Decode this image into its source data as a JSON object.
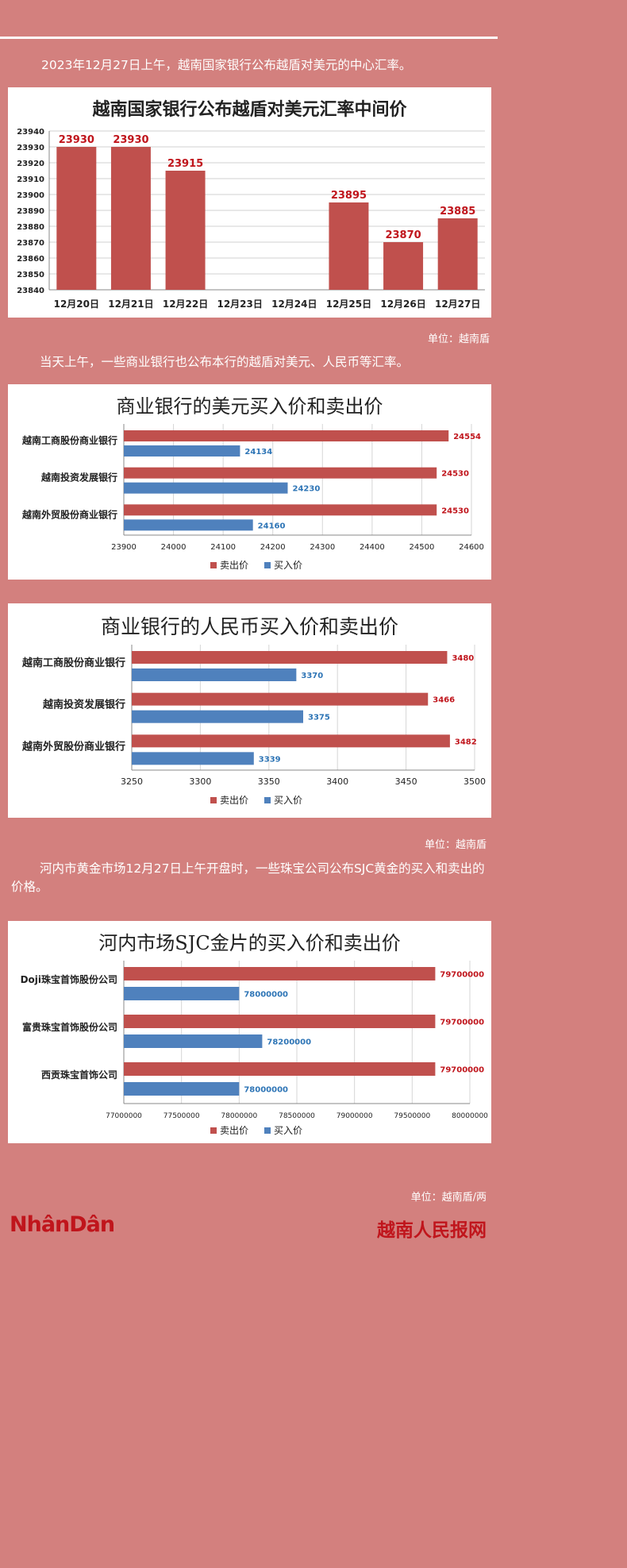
{
  "intro1": "2023年12月27日上午，越南国家银行公布越盾对美元的中心汇率。",
  "unit1": "单位：越南盾",
  "intro2": "当天上午，一些商业银行也公布本行的越盾对美元、人民币等汇率。",
  "unit2": "单位：越南盾",
  "intro3": "河内市黄金市场12月27日上午开盘时，一些珠宝公司公布SJC黄金的买入和卖出的价格。",
  "unit3": "单位：越南盾/两",
  "footer": {
    "logo_left": "NhânDân",
    "logo_right": "越南人民报网"
  },
  "colors": {
    "sell": "#c0504d",
    "buy": "#4f81bd",
    "bg": "#d3807e"
  },
  "chart_data": [
    {
      "type": "bar",
      "title": "越南国家银行公布越盾对美元汇率中间价",
      "categories": [
        "12月20日",
        "12月21日",
        "12月22日",
        "12月23日",
        "12月24日",
        "12月25日",
        "12月26日",
        "12月27日"
      ],
      "values": [
        23930,
        23930,
        23915,
        null,
        null,
        23895,
        23870,
        23885
      ],
      "ylim": [
        23840,
        23940
      ],
      "yticks": [
        23840,
        23850,
        23860,
        23870,
        23880,
        23890,
        23900,
        23910,
        23920,
        23930,
        23940
      ],
      "grid": true
    },
    {
      "type": "bar",
      "orientation": "horizontal",
      "title": "商业银行的美元买入价和卖出价",
      "categories": [
        "越南工商股份商业银行",
        "越南投资发展银行",
        "越南外贸股份商业银行"
      ],
      "series": [
        {
          "name": "卖出价",
          "values": [
            24554,
            24530,
            24530
          ]
        },
        {
          "name": "买入价",
          "values": [
            24134,
            24230,
            24160
          ]
        }
      ],
      "xlim": [
        23900,
        24600
      ],
      "xticks": [
        23900,
        24000,
        24100,
        24200,
        24300,
        24400,
        24500,
        24600
      ],
      "legend": "bottom"
    },
    {
      "type": "bar",
      "orientation": "horizontal",
      "title": "商业银行的人民币买入价和卖出价",
      "categories": [
        "越南工商股份商业银行",
        "越南投资发展银行",
        "越南外贸股份商业银行"
      ],
      "series": [
        {
          "name": "卖出价",
          "values": [
            3480,
            3466,
            3482
          ]
        },
        {
          "name": "买入价",
          "values": [
            3370,
            3375,
            3339
          ]
        }
      ],
      "xlim": [
        3250,
        3500
      ],
      "xticks": [
        3250,
        3300,
        3350,
        3400,
        3450,
        3500
      ],
      "legend": "bottom"
    },
    {
      "type": "bar",
      "orientation": "horizontal",
      "title": "河内市场SJC金片的买入价和卖出价",
      "categories": [
        "Doji珠宝首饰股份公司",
        "富贵珠宝首饰股份公司",
        "西贡珠宝首饰公司"
      ],
      "series": [
        {
          "name": "卖出价",
          "values": [
            79700000,
            79700000,
            79700000
          ]
        },
        {
          "name": "买入价",
          "values": [
            78000000,
            78200000,
            78000000
          ]
        }
      ],
      "xlim": [
        77000000,
        80000000
      ],
      "xticks": [
        77000000,
        77500000,
        78000000,
        78500000,
        79000000,
        79500000,
        80000000
      ],
      "legend": "bottom"
    }
  ]
}
